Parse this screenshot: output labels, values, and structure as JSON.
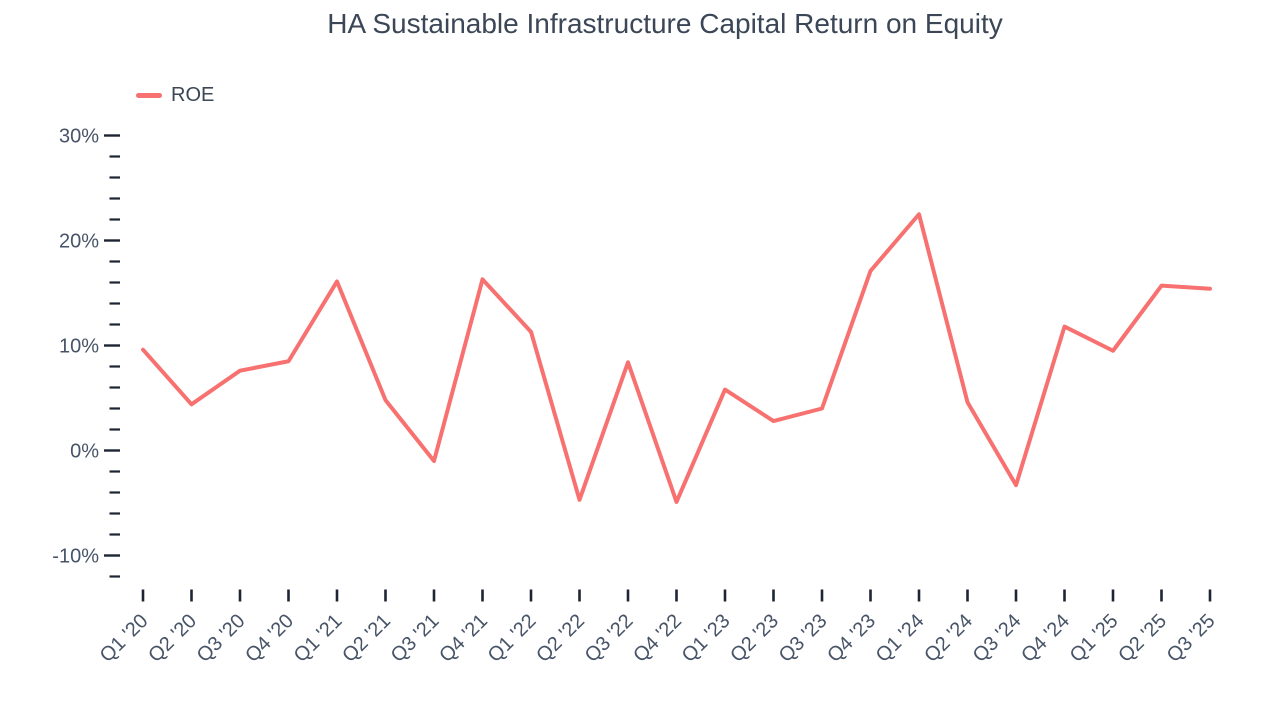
{
  "title": "HA Sustainable Infrastructure Capital Return on Equity",
  "legend": {
    "items": [
      {
        "label": "ROE",
        "color": "#F87171"
      }
    ]
  },
  "chart_data": {
    "type": "line",
    "title": "HA Sustainable Infrastructure Capital Return on Equity",
    "categories": [
      "Q1 '20",
      "Q2 '20",
      "Q3 '20",
      "Q4 '20",
      "Q1 '21",
      "Q2 '21",
      "Q3 '21",
      "Q4 '21",
      "Q1 '22",
      "Q2 '22",
      "Q3 '22",
      "Q4 '22",
      "Q1 '23",
      "Q2 '23",
      "Q3 '23",
      "Q4 '23",
      "Q1 '24",
      "Q2 '24",
      "Q3 '24",
      "Q4 '24",
      "Q1 '25",
      "Q2 '25",
      "Q3 '25"
    ],
    "series": [
      {
        "name": "ROE",
        "color": "#F87171",
        "values": [
          9.6,
          4.4,
          7.6,
          8.5,
          16.1,
          4.8,
          -1.0,
          16.3,
          11.3,
          -4.7,
          8.4,
          -4.9,
          5.8,
          2.8,
          4.0,
          17.1,
          22.5,
          4.6,
          -3.3,
          11.8,
          9.5,
          15.7,
          15.4
        ]
      }
    ],
    "xlabel": "",
    "ylabel": "",
    "y_axis": {
      "unit": "%",
      "range": [
        -12,
        30
      ],
      "minor_tick_step": 2,
      "major_ticks": [
        {
          "value": 30,
          "label": "30%"
        },
        {
          "value": 20,
          "label": "20%"
        },
        {
          "value": 10,
          "label": "10%"
        },
        {
          "value": 0,
          "label": "0%"
        },
        {
          "value": -10,
          "label": "-10%"
        }
      ]
    },
    "grid": false,
    "legend_position": "top-left"
  },
  "colors": {
    "line": "#F87171",
    "title_text": "#3B4656",
    "axis_label_text": "#475467",
    "tick": "#1D2433",
    "background": "#FFFFFF"
  }
}
